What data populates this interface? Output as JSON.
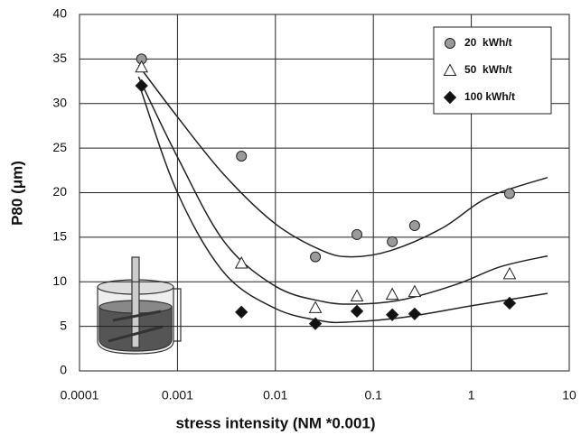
{
  "chart_data": {
    "type": "scatter",
    "x_label": "stress intensity (NM *0.001)",
    "y_label": "P80 (μm)",
    "log_x": true,
    "grid": true,
    "legend": "upper right",
    "xlim": [
      0.0001,
      10
    ],
    "xticks": [
      0.0001,
      0.001,
      0.01,
      0.1,
      1,
      10
    ],
    "ylim": [
      0,
      40
    ],
    "yticks": [
      0,
      5,
      10,
      15,
      20,
      25,
      30,
      35,
      40
    ],
    "series": [
      {
        "name": "20  kWh/t",
        "marker": "circle",
        "color": "#9a9a9a",
        "x": [
          0.00043,
          0.0045,
          0.0256,
          0.068,
          0.156,
          0.264,
          2.46
        ],
        "values": [
          35.0,
          24.1,
          12.8,
          15.3,
          14.5,
          16.3,
          19.9
        ],
        "fit": {
          "x": [
            0.0004,
            0.001,
            0.003,
            0.01,
            0.03,
            0.06,
            0.15,
            0.5,
            1.5,
            6
          ],
          "values": [
            34.3,
            28.5,
            22,
            16.5,
            13.5,
            12.8,
            13.5,
            16,
            19.5,
            21.7
          ]
        }
      },
      {
        "name": "50  kWh/t",
        "marker": "triangle",
        "color": "#ffffff",
        "x": [
          0.00043,
          0.0045,
          0.0256,
          0.068,
          0.156,
          0.264,
          2.46
        ],
        "values": [
          34.1,
          12.1,
          7.1,
          8.4,
          8.6,
          8.9,
          10.9
        ],
        "fit": {
          "x": [
            0.0004,
            0.001,
            0.003,
            0.01,
            0.03,
            0.07,
            0.2,
            0.7,
            2,
            6
          ],
          "values": [
            33,
            24,
            14.5,
            9.5,
            7.8,
            7.5,
            8,
            9.7,
            11.7,
            12.9
          ]
        }
      },
      {
        "name": "100 kWh/t",
        "marker": "diamond",
        "color": "#111111",
        "x": [
          0.00043,
          0.0045,
          0.0256,
          0.068,
          0.156,
          0.264,
          2.46
        ],
        "values": [
          32.0,
          6.6,
          5.3,
          6.7,
          6.3,
          6.4,
          7.6
        ],
        "fit": {
          "x": [
            0.00041,
            0.001,
            0.003,
            0.01,
            0.03,
            0.06,
            0.2,
            1,
            6
          ],
          "values": [
            32,
            20,
            11,
            7,
            5.6,
            5.5,
            6,
            7.3,
            8.7
          ]
        }
      }
    ]
  }
}
